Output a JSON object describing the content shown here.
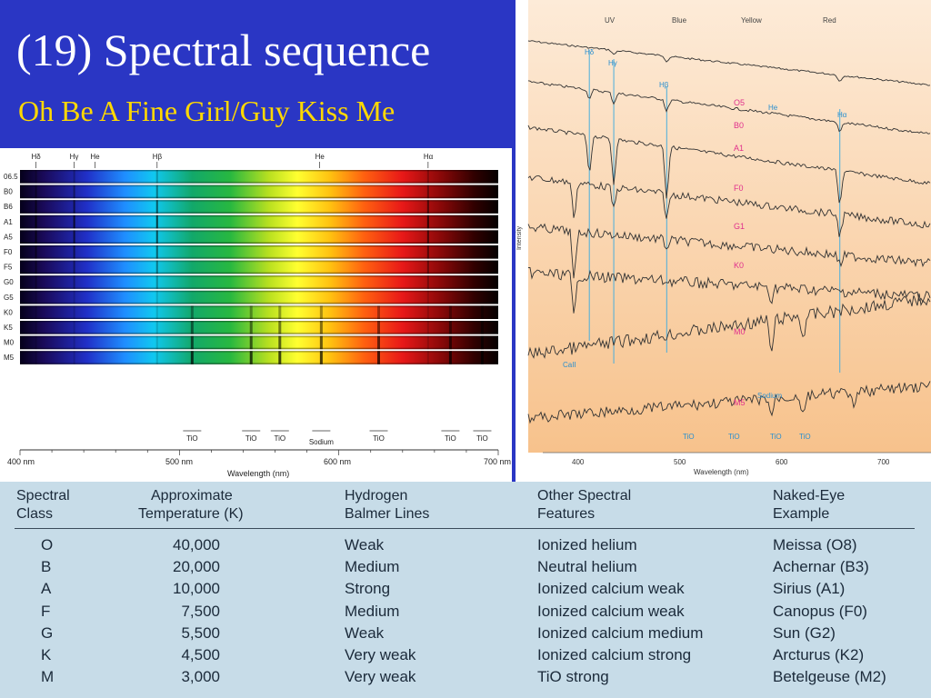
{
  "slide": {
    "title": "(19) Spectral sequence",
    "subtitle": "Oh Be A Fine Girl/Guy Kiss Me"
  },
  "spectra_panel": {
    "classes": [
      "06.5",
      "B0",
      "B6",
      "A1",
      "A5",
      "F0",
      "F5",
      "G0",
      "G5",
      "K0",
      "K5",
      "M0",
      "M5"
    ],
    "line_labels": [
      {
        "text": "Hδ",
        "wavelength_nm": 410
      },
      {
        "text": "Hγ",
        "wavelength_nm": 434
      },
      {
        "text": "He",
        "wavelength_nm": 447
      },
      {
        "text": "Hβ",
        "wavelength_nm": 486
      },
      {
        "text": "He",
        "wavelength_nm": 588
      },
      {
        "text": "Hα",
        "wavelength_nm": 656
      }
    ],
    "bottom_labels": [
      {
        "text": "TiO",
        "wavelength_nm": 508
      },
      {
        "text": "TiO",
        "wavelength_nm": 545
      },
      {
        "text": "TiO",
        "wavelength_nm": 563
      },
      {
        "text": "Sodium",
        "wavelength_nm": 589
      },
      {
        "text": "TiO",
        "wavelength_nm": 625
      },
      {
        "text": "TiO",
        "wavelength_nm": 670
      },
      {
        "text": "TiO",
        "wavelength_nm": 690
      }
    ],
    "axis": {
      "ticks": [
        "400 nm",
        "500 nm",
        "600 nm",
        "700 nm"
      ],
      "label": "Wavelength (nm)"
    }
  },
  "intensity_panel": {
    "top_labels": [
      "UV",
      "Blue",
      "Yellow",
      "Red"
    ],
    "ylabel": "Intensity",
    "xlabel": "Wavelength (nm)",
    "xticks": [
      "400",
      "500",
      "600",
      "700"
    ],
    "curve_labels": [
      "O5",
      "B0",
      "A1",
      "F0",
      "G1",
      "K0",
      "M0",
      "M5"
    ],
    "annotations": [
      {
        "text": "Hδ"
      },
      {
        "text": "Hγ"
      },
      {
        "text": "Hβ"
      },
      {
        "text": "He"
      },
      {
        "text": "Hα"
      },
      {
        "text": "CaII"
      },
      {
        "text": "Sodium"
      },
      {
        "text": "TiO"
      },
      {
        "text": "TiO"
      },
      {
        "text": "TiO"
      },
      {
        "text": "TiO"
      }
    ]
  },
  "table": {
    "headers": [
      [
        "Spectral",
        "Class"
      ],
      [
        "Approximate",
        "Temperature (K)"
      ],
      [
        "Hydrogen",
        "Balmer Lines"
      ],
      [
        "Other Spectral",
        "Features"
      ],
      [
        "Naked-Eye",
        "Example"
      ]
    ],
    "rows": [
      [
        "O",
        "40,000",
        "Weak",
        "Ionized helium",
        "Meissa (O8)"
      ],
      [
        "B",
        "20,000",
        "Medium",
        "Neutral helium",
        "Achernar (B3)"
      ],
      [
        "A",
        "10,000",
        "Strong",
        "Ionized calcium weak",
        "Sirius (A1)"
      ],
      [
        "F",
        "7,500",
        "Medium",
        "Ionized calcium weak",
        "Canopus (F0)"
      ],
      [
        "G",
        "5,500",
        "Weak",
        "Ionized calcium medium",
        "Sun (G2)"
      ],
      [
        "K",
        "4,500",
        "Very weak",
        "Ionized calcium strong",
        "Arcturus (K2)"
      ],
      [
        "M",
        "3,000",
        "Very weak",
        "TiO strong",
        "Betelgeuse (M2)"
      ]
    ]
  }
}
